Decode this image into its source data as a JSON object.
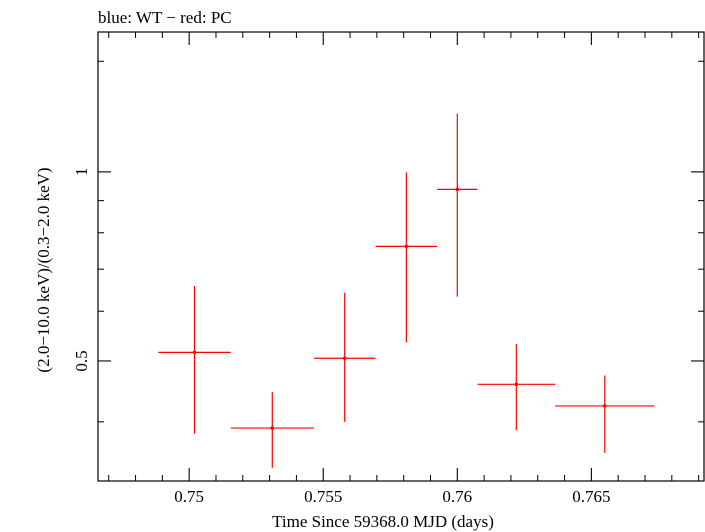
{
  "chart_data": {
    "type": "scatter",
    "title": "blue: WT − red: PC",
    "xlabel": "Time Since 59368.0 MJD (days)",
    "ylabel": "(2.0−10.0 keV)/(0.3−2.0 keV)",
    "xlim": [
      0.7466,
      0.7692
    ],
    "ylim": [
      0.322,
      1.67
    ],
    "y_scale": "log",
    "x_ticks": [
      {
        "value": 0.75,
        "label": "0.75"
      },
      {
        "value": 0.755,
        "label": "0.755"
      },
      {
        "value": 0.76,
        "label": "0.76"
      },
      {
        "value": 0.765,
        "label": "0.765"
      }
    ],
    "y_ticks": [
      {
        "value": 0.5,
        "label": "0.5"
      },
      {
        "value": 1,
        "label": "1"
      }
    ],
    "series": [
      {
        "name": "PC",
        "color": "#ff0000",
        "points": [
          {
            "x": 0.7502,
            "xerr": 0.00135,
            "y": 0.516,
            "ylo": 0.383,
            "yhi": 0.658
          },
          {
            "x": 0.7531,
            "xerr": 0.00155,
            "y": 0.391,
            "ylo": 0.338,
            "yhi": 0.446
          },
          {
            "x": 0.7558,
            "xerr": 0.00115,
            "y": 0.505,
            "ylo": 0.4,
            "yhi": 0.642
          },
          {
            "x": 0.7581,
            "xerr": 0.00115,
            "y": 0.761,
            "ylo": 0.535,
            "yhi": 0.998
          },
          {
            "x": 0.76,
            "xerr": 0.00075,
            "y": 0.938,
            "ylo": 0.633,
            "yhi": 1.238
          },
          {
            "x": 0.7622,
            "xerr": 0.00145,
            "y": 0.459,
            "ylo": 0.388,
            "yhi": 0.532
          },
          {
            "x": 0.7655,
            "xerr": 0.00185,
            "y": 0.424,
            "ylo": 0.357,
            "yhi": 0.474
          }
        ]
      }
    ]
  }
}
